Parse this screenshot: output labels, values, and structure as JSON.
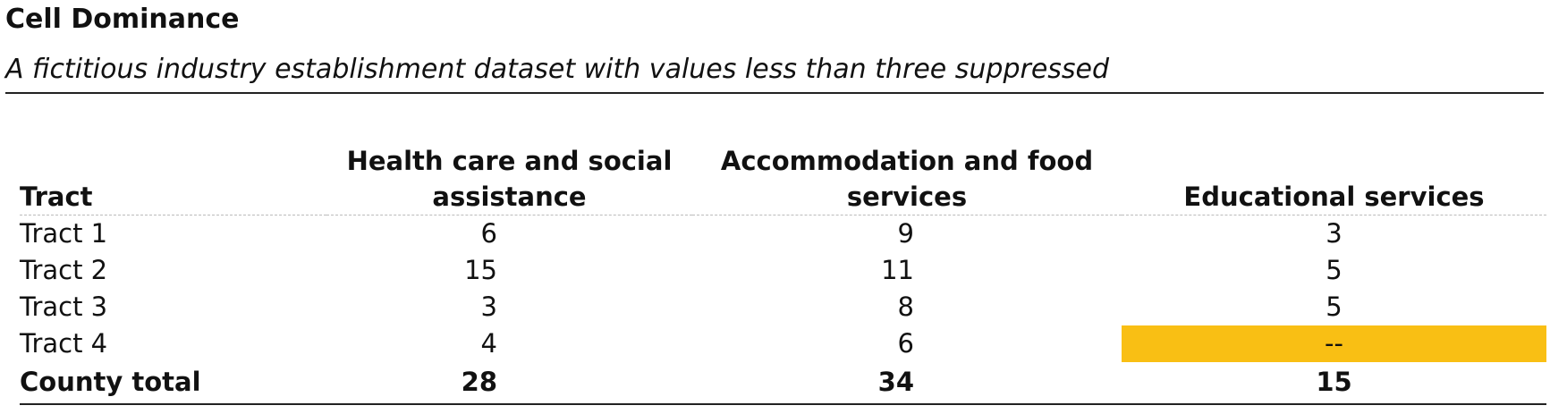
{
  "header": {
    "title": "Cell Dominance",
    "subtitle": "A fictitious industry establishment dataset with values less than three suppressed"
  },
  "table": {
    "columns": [
      "Tract",
      "Health care and social assistance",
      "Accommodation and food services",
      "Educational services"
    ],
    "rows": [
      [
        "Tract 1",
        6,
        9,
        3
      ],
      [
        "Tract 2",
        15,
        11,
        5
      ],
      [
        "Tract 3",
        3,
        8,
        5
      ],
      [
        "Tract 4",
        4,
        6,
        "--"
      ]
    ],
    "total": [
      "County total",
      28,
      34,
      15
    ]
  }
}
